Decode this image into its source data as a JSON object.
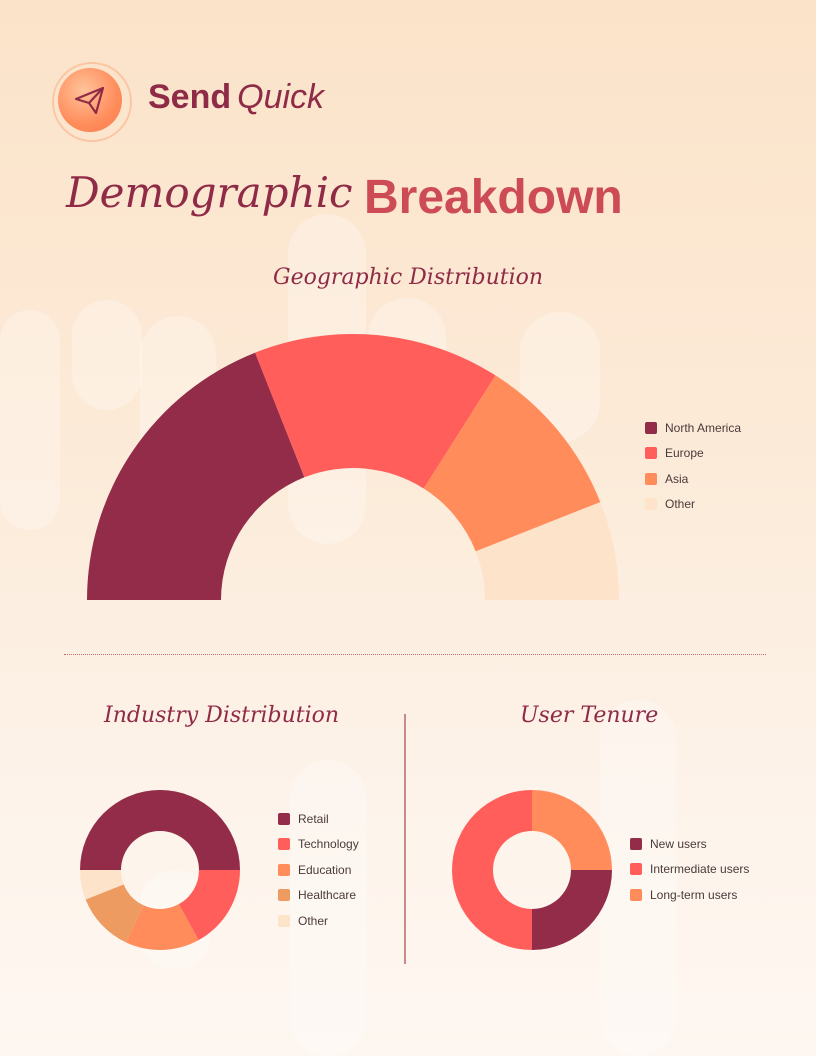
{
  "brand": {
    "name_bold": "Send",
    "name_italic": "Quick",
    "icon": "paper-plane-icon"
  },
  "page": {
    "title_part1": "Demographic",
    "title_part2": "Breakdown"
  },
  "colors": {
    "maroon": "#922c48",
    "coral": "#ff5e5b",
    "orange": "#ff8c5a",
    "tan": "#ee9b62",
    "cream": "#fde3ca",
    "accent": "#cc4b55",
    "title": "#8f2b47"
  },
  "chart_data": [
    {
      "type": "pie",
      "subtype": "semi-donut",
      "title": "Geographic Distribution",
      "labels": [
        "North America",
        "Europe",
        "Asia",
        "Other"
      ],
      "values": [
        38,
        30,
        20,
        12
      ],
      "colors": [
        "#922c48",
        "#ff5e5b",
        "#ff8c5a",
        "#fde3ca"
      ],
      "legend_position": "right"
    },
    {
      "type": "pie",
      "subtype": "donut",
      "title": "Industry Distribution",
      "labels": [
        "Retail",
        "Technology",
        "Education",
        "Healthcare",
        "Other"
      ],
      "values": [
        50,
        17,
        15,
        12,
        6
      ],
      "colors": [
        "#922c48",
        "#ff5e5b",
        "#ff8c5a",
        "#ee9b62",
        "#fde3ca"
      ],
      "legend_position": "right"
    },
    {
      "type": "pie",
      "subtype": "donut",
      "title": "User Tenure",
      "labels": [
        "New users",
        "Intermediate users",
        "Long-term users"
      ],
      "values": [
        25,
        50,
        25
      ],
      "colors": [
        "#922c48",
        "#ff5e5b",
        "#ff8c5a"
      ],
      "legend_position": "right"
    }
  ]
}
